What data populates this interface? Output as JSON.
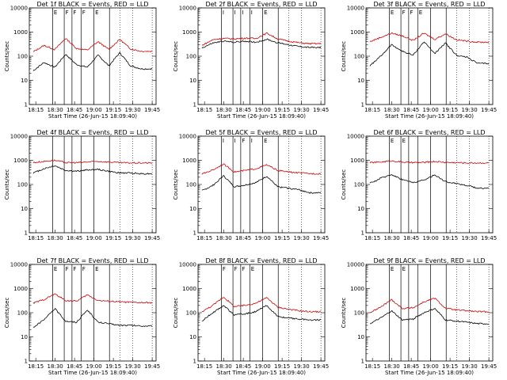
{
  "figure": {
    "colors": {
      "events": "#000000",
      "lld": "#cc0000",
      "background": "#ffffff"
    }
  },
  "chart_data": [
    {
      "type": "line",
      "title": "Det 1f BLACK = Events, RED = LLD",
      "xlabel": "Start Time (26-Jun-15 18:09:40)",
      "ylabel": "Counts/sec",
      "yscale": "log",
      "ylim": [
        1,
        10000
      ],
      "xticks": [
        "18:15",
        "18:30",
        "18:45",
        "19:00",
        "19:15",
        "19:30",
        "19:45"
      ],
      "series": [
        {
          "name": "Events",
          "color": "#000000",
          "values": [
            25,
            55,
            35,
            120,
            45,
            35,
            110,
            40,
            140,
            40,
            30,
            30
          ]
        },
        {
          "name": "LLD",
          "color": "#cc0000",
          "values": [
            150,
            280,
            190,
            550,
            210,
            180,
            400,
            190,
            500,
            200,
            160,
            160
          ]
        }
      ],
      "markers": {
        "solid": [
          "18:28",
          "18:37",
          "18:43",
          "18:50",
          "19:00",
          "19:12"
        ],
        "dotted": [
          "19:20",
          "19:30",
          "19:45"
        ],
        "tags": [
          "E",
          "F",
          "F",
          "F",
          "E"
        ]
      }
    },
    {
      "type": "line",
      "title": "Det 2f BLACK = Events, RED = LLD",
      "xlabel": "Start Time (26-Jun-15 18:09:40)",
      "ylabel": "Counts/sec",
      "yscale": "log",
      "ylim": [
        1,
        10000
      ],
      "xticks": [
        "18:15",
        "18:30",
        "18:45",
        "19:00",
        "19:15",
        "19:30",
        "19:45"
      ],
      "series": [
        {
          "name": "Events",
          "color": "#000000",
          "values": [
            220,
            350,
            420,
            380,
            420,
            380,
            500,
            360,
            300,
            250,
            230,
            230
          ]
        },
        {
          "name": "LLD",
          "color": "#cc0000",
          "values": [
            280,
            480,
            550,
            520,
            560,
            540,
            900,
            520,
            420,
            360,
            330,
            330
          ]
        }
      ],
      "markers": {
        "solid": [
          "18:28",
          "18:37",
          "18:43",
          "18:50",
          "19:00",
          "19:12"
        ],
        "dotted": [
          "19:20",
          "19:30",
          "19:45"
        ],
        "tags": [
          "I",
          "I",
          "I",
          "I",
          "E"
        ]
      }
    },
    {
      "type": "line",
      "title": "Det 3f BLACK = Events, RED = LLD",
      "xlabel": "Start Time (26-Jun-15 18:09:40)",
      "ylabel": "Counts/sec",
      "yscale": "log",
      "ylim": [
        1,
        10000
      ],
      "xticks": [
        "18:15",
        "18:30",
        "18:45",
        "19:00",
        "19:15",
        "19:30",
        "19:45"
      ],
      "series": [
        {
          "name": "Events",
          "color": "#000000",
          "values": [
            40,
            100,
            300,
            160,
            110,
            400,
            130,
            350,
            110,
            90,
            50,
            50
          ]
        },
        {
          "name": "LLD",
          "color": "#cc0000",
          "values": [
            400,
            600,
            900,
            700,
            450,
            900,
            500,
            850,
            480,
            420,
            380,
            380
          ]
        }
      ],
      "markers": {
        "solid": [
          "18:28",
          "18:37",
          "18:43",
          "18:50",
          "19:00",
          "19:12"
        ],
        "dotted": [
          "19:20",
          "19:30",
          "19:45"
        ],
        "tags": [
          "E",
          "F",
          "F",
          "E"
        ]
      }
    },
    {
      "type": "line",
      "title": "Det 4f BLACK = Events, RED = LLD",
      "xlabel": "",
      "ylabel": "Counts/sec",
      "yscale": "log",
      "ylim": [
        1,
        10000
      ],
      "xticks": [
        "18:15",
        "18:30",
        "18:45",
        "19:00",
        "19:15",
        "19:30",
        "19:45"
      ],
      "series": [
        {
          "name": "Events",
          "color": "#000000",
          "values": [
            300,
            450,
            600,
            380,
            350,
            400,
            420,
            350,
            300,
            300,
            280,
            280
          ]
        },
        {
          "name": "LLD",
          "color": "#cc0000",
          "values": [
            800,
            900,
            1000,
            800,
            800,
            850,
            900,
            850,
            800,
            780,
            780,
            780
          ]
        }
      ],
      "markers": {
        "solid": [
          "18:28",
          "18:37",
          "18:43",
          "18:50",
          "19:00",
          "19:12"
        ],
        "dotted": [
          "19:20",
          "19:30",
          "19:45"
        ],
        "tags": []
      }
    },
    {
      "type": "line",
      "title": "Det 5f BLACK = Events, RED = LLD",
      "xlabel": "",
      "ylabel": "Counts/sec",
      "yscale": "log",
      "ylim": [
        1,
        10000
      ],
      "xticks": [
        "18:15",
        "18:30",
        "18:45",
        "19:00",
        "19:15",
        "19:30",
        "19:45"
      ],
      "series": [
        {
          "name": "Events",
          "color": "#000000",
          "values": [
            55,
            90,
            230,
            80,
            95,
            120,
            220,
            80,
            70,
            60,
            45,
            45
          ]
        },
        {
          "name": "LLD",
          "color": "#cc0000",
          "values": [
            270,
            400,
            700,
            330,
            380,
            450,
            650,
            380,
            330,
            300,
            280,
            280
          ]
        }
      ],
      "markers": {
        "solid": [
          "18:28",
          "18:37",
          "18:43",
          "18:50",
          "19:00",
          "19:12"
        ],
        "dotted": [
          "19:20",
          "19:30",
          "19:45"
        ],
        "tags": [
          "I",
          "I",
          "F",
          "I",
          "E"
        ]
      }
    },
    {
      "type": "line",
      "title": "Det 6f BLACK = Events, RED = LLD",
      "xlabel": "",
      "ylabel": "Counts/sec",
      "yscale": "log",
      "ylim": [
        1,
        10000
      ],
      "xticks": [
        "18:15",
        "18:30",
        "18:45",
        "19:00",
        "19:15",
        "19:30",
        "19:45"
      ],
      "series": [
        {
          "name": "Events",
          "color": "#000000",
          "values": [
            110,
            180,
            260,
            160,
            120,
            150,
            250,
            130,
            110,
            90,
            70,
            70
          ]
        },
        {
          "name": "LLD",
          "color": "#cc0000",
          "values": [
            800,
            850,
            950,
            850,
            800,
            820,
            900,
            820,
            800,
            780,
            780,
            780
          ]
        }
      ],
      "markers": {
        "solid": [
          "18:28",
          "18:37",
          "18:43",
          "18:50",
          "19:00",
          "19:12"
        ],
        "dotted": [
          "19:20",
          "19:30",
          "19:45"
        ],
        "tags": [
          "E",
          "E"
        ]
      }
    },
    {
      "type": "line",
      "title": "Det 7f BLACK = Events, RED = LLD",
      "xlabel": "Start Time (26-Jun-15 18:09:40)",
      "ylabel": "Counts/sec",
      "yscale": "log",
      "ylim": [
        1,
        10000
      ],
      "xticks": [
        "18:15",
        "18:30",
        "18:45",
        "19:00",
        "19:15",
        "19:30",
        "19:45"
      ],
      "series": [
        {
          "name": "Events",
          "color": "#000000",
          "values": [
            25,
            50,
            150,
            45,
            40,
            130,
            40,
            35,
            30,
            30,
            28,
            28
          ]
        },
        {
          "name": "LLD",
          "color": "#cc0000",
          "values": [
            250,
            350,
            600,
            320,
            300,
            550,
            320,
            300,
            280,
            270,
            260,
            260
          ]
        }
      ],
      "markers": {
        "solid": [
          "18:28",
          "18:37",
          "18:43",
          "18:50",
          "19:00",
          "19:12"
        ],
        "dotted": [
          "19:20",
          "19:30",
          "19:45"
        ],
        "tags": [
          "E",
          "F",
          "F",
          "F",
          "E"
        ]
      }
    },
    {
      "type": "line",
      "title": "Det 8f BLACK = Events, RED = LLD",
      "xlabel": "Start Time (26-Jun-15 18:09:40)",
      "ylabel": "Counts/sec",
      "yscale": "log",
      "ylim": [
        1,
        10000
      ],
      "xticks": [
        "18:15",
        "18:30",
        "18:45",
        "19:00",
        "19:15",
        "19:30",
        "19:45"
      ],
      "series": [
        {
          "name": "Events",
          "color": "#000000",
          "values": [
            45,
            100,
            200,
            80,
            90,
            110,
            200,
            70,
            60,
            55,
            50,
            50
          ]
        },
        {
          "name": "LLD",
          "color": "#cc0000",
          "values": [
            110,
            200,
            450,
            180,
            200,
            250,
            420,
            170,
            140,
            120,
            110,
            110
          ]
        }
      ],
      "markers": {
        "solid": [
          "18:28",
          "18:37",
          "18:43",
          "18:50",
          "19:00",
          "19:12"
        ],
        "dotted": [
          "19:20",
          "19:30",
          "19:45"
        ],
        "tags": [
          "F",
          "F",
          "F",
          "E"
        ]
      }
    },
    {
      "type": "line",
      "title": "Det 9f BLACK = Events, RED = LLD",
      "xlabel": "Start Time (26-Jun-15 18:09:40)",
      "ylabel": "Counts/sec",
      "yscale": "log",
      "ylim": [
        1,
        10000
      ],
      "xticks": [
        "18:15",
        "18:30",
        "18:45",
        "19:00",
        "19:15",
        "19:30",
        "19:45"
      ],
      "series": [
        {
          "name": "Events",
          "color": "#000000",
          "values": [
            35,
            60,
            120,
            50,
            55,
            100,
            150,
            50,
            45,
            40,
            35,
            35
          ]
        },
        {
          "name": "LLD",
          "color": "#cc0000",
          "values": [
            100,
            170,
            350,
            150,
            160,
            280,
            400,
            150,
            130,
            120,
            110,
            110
          ]
        }
      ],
      "markers": {
        "solid": [
          "18:28",
          "18:37",
          "18:43",
          "18:50",
          "19:00",
          "19:12"
        ],
        "dotted": [
          "19:20",
          "19:30",
          "19:45"
        ],
        "tags": [
          "E",
          "E"
        ]
      }
    }
  ]
}
